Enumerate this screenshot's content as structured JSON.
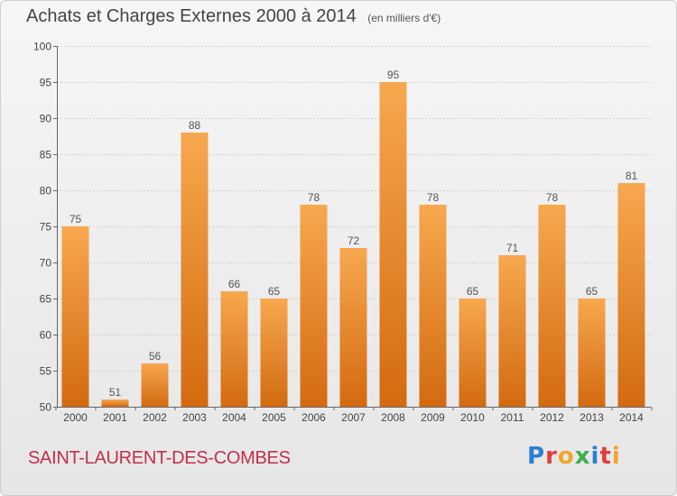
{
  "header": {
    "title": "Achats et Charges Externes 2000 à 2014",
    "subtitle": "(en milliers d'€)"
  },
  "footer": {
    "commune": "SAINT-LAURENT-DES-COMBES",
    "brand": "Proxiti",
    "brand_colors": [
      "#2a7fd4",
      "#e23d3d",
      "#f1a52a",
      "#3fae49",
      "#2a7fd4",
      "#e23d3d",
      "#f1a52a"
    ]
  },
  "colors": {
    "bar_top": "#f7a84f",
    "bar_bottom": "#d36a10",
    "gridline": "#d0d0d0",
    "axis": "#666666"
  },
  "chart_data": {
    "type": "bar",
    "categories": [
      "2000",
      "2001",
      "2002",
      "2003",
      "2004",
      "2005",
      "2006",
      "2007",
      "2008",
      "2009",
      "2010",
      "2011",
      "2012",
      "2013",
      "2014"
    ],
    "values": [
      75,
      51,
      56,
      88,
      66,
      65,
      78,
      72,
      95,
      78,
      65,
      71,
      78,
      65,
      81
    ],
    "ylim": [
      50,
      100
    ],
    "yticks": [
      50,
      55,
      60,
      65,
      70,
      75,
      80,
      85,
      90,
      95,
      100
    ],
    "grid": true,
    "legend": "none"
  }
}
